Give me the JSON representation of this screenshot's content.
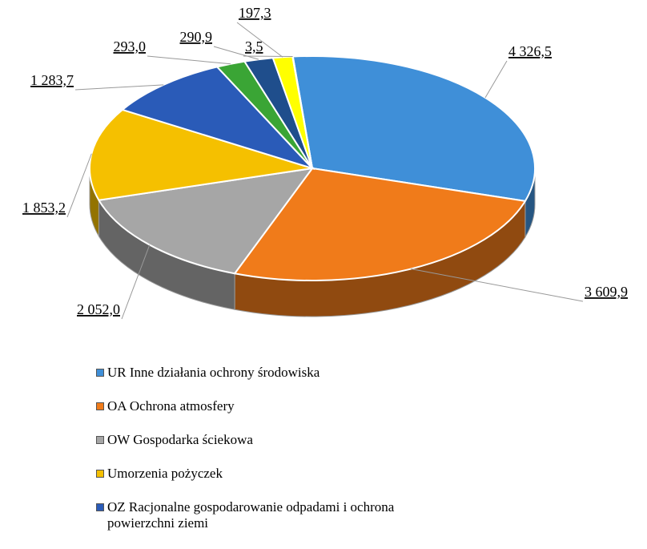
{
  "chart_data": {
    "type": "pie3d",
    "categories": [
      "UR Inne działania ochrony środowiska",
      "OA Ochrona atmosfery",
      "OW Gospodarka ściekowa",
      "Umorzenia pożyczek",
      "OZ Racjonalne gospodarowanie odpadami i ochrona powierzchni ziemi",
      null,
      null,
      null,
      null
    ],
    "values": [
      4326.5,
      3609.9,
      2052.0,
      1853.2,
      1283.7,
      293.0,
      290.9,
      197.3,
      3.5
    ],
    "value_labels": [
      "4 326,5",
      "3 609,9",
      "2 052,0",
      "1 853,2",
      "1 283,7",
      "293,0",
      "290,9",
      "197,3",
      "3,5"
    ],
    "colors": [
      "#3f8fd8",
      "#f07b1a",
      "#a6a6a6",
      "#f5c000",
      "#2a5bb8",
      "#3aa535",
      "#1f4e8c",
      "#ffff00",
      "#1a3a6b"
    ],
    "legend": "bottom"
  }
}
